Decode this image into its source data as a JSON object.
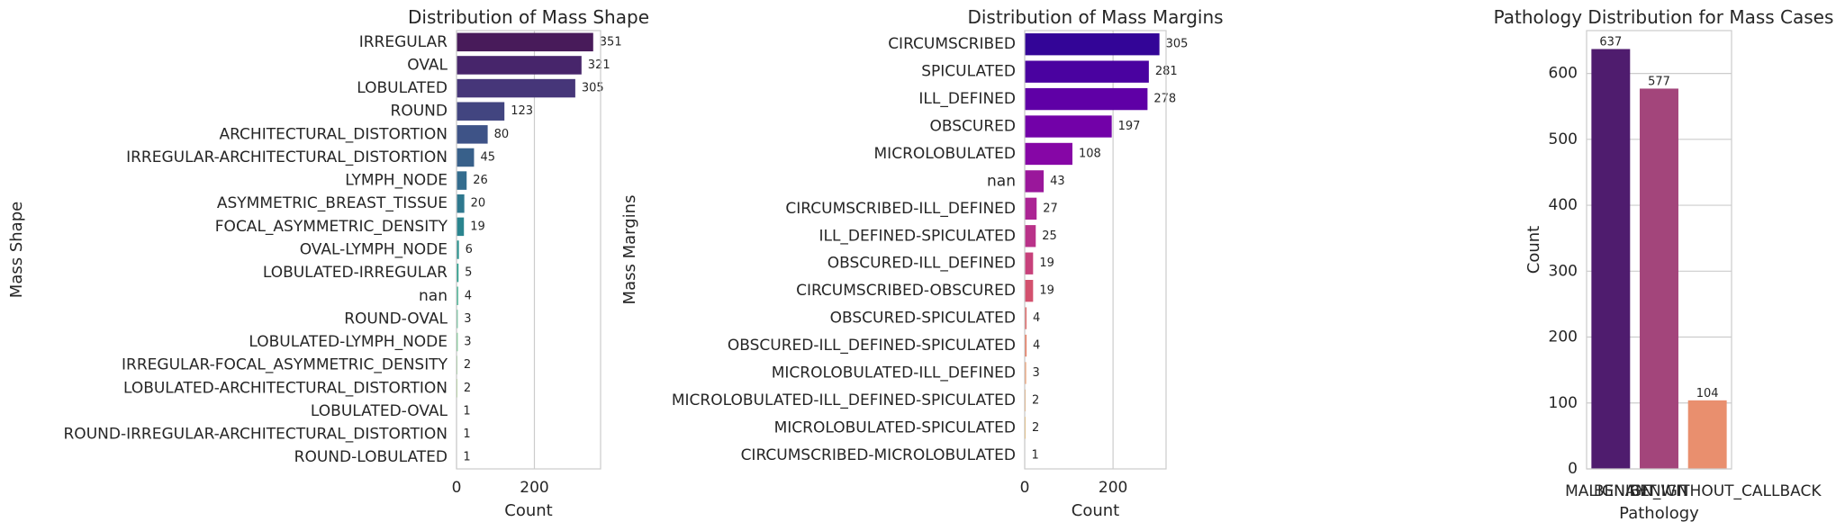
{
  "chart_data": [
    {
      "type": "bar",
      "orientation": "horizontal",
      "title": "Distribution of Mass Shape",
      "xlabel": "Count",
      "ylabel": "Mass Shape",
      "xlim": [
        0,
        370
      ],
      "xticks": [
        0,
        200
      ],
      "grid": true,
      "palette": "viridis",
      "categories": [
        "IRREGULAR",
        "OVAL",
        "LOBULATED",
        "ROUND",
        "ARCHITECTURAL_DISTORTION",
        "IRREGULAR-ARCHITECTURAL_DISTORTION",
        "LYMPH_NODE",
        "ASYMMETRIC_BREAST_TISSUE",
        "FOCAL_ASYMMETRIC_DENSITY",
        "OVAL-LYMPH_NODE",
        "LOBULATED-IRREGULAR",
        "nan",
        "ROUND-OVAL",
        "LOBULATED-LYMPH_NODE",
        "IRREGULAR-FOCAL_ASYMMETRIC_DENSITY",
        "LOBULATED-ARCHITECTURAL_DISTORTION",
        "LOBULATED-OVAL",
        "ROUND-IRREGULAR-ARCHITECTURAL_DISTORTION",
        "ROUND-LOBULATED"
      ],
      "values": [
        351,
        321,
        305,
        123,
        80,
        45,
        26,
        20,
        19,
        6,
        5,
        4,
        3,
        3,
        2,
        2,
        1,
        1,
        1
      ],
      "colors": [
        "#481b5a",
        "#47256b",
        "#463679",
        "#424580",
        "#3e5387",
        "#38608a",
        "#336c8e",
        "#2e788e",
        "#2a848e",
        "#25908c",
        "#209c88",
        "#25a883",
        "#35b47a",
        "#4abf6f",
        "#66c861",
        "#87d04f",
        "#a9d93c",
        "#cddd2e",
        "#ecd62a"
      ]
    },
    {
      "type": "bar",
      "orientation": "horizontal",
      "title": "Distribution of Mass Margins",
      "xlabel": "Count",
      "ylabel": "Mass Margins",
      "xlim": [
        0,
        320
      ],
      "xticks": [
        0,
        200
      ],
      "grid": true,
      "palette": "plasma",
      "categories": [
        "CIRCUMSCRIBED",
        "SPICULATED",
        "ILL_DEFINED",
        "OBSCURED",
        "MICROLOBULATED",
        "nan",
        "CIRCUMSCRIBED-ILL_DEFINED",
        "ILL_DEFINED-SPICULATED",
        "OBSCURED-ILL_DEFINED",
        "CIRCUMSCRIBED-OBSCURED",
        "OBSCURED-SPICULATED",
        "OBSCURED-ILL_DEFINED-SPICULATED",
        "MICROLOBULATED-ILL_DEFINED",
        "MICROLOBULATED-ILL_DEFINED-SPICULATED",
        "MICROLOBULATED-SPICULATED",
        "CIRCUMSCRIBED-MICROLOBULATED"
      ],
      "values": [
        305,
        281,
        278,
        197,
        108,
        43,
        27,
        25,
        19,
        19,
        4,
        4,
        3,
        2,
        2,
        1
      ],
      "colors": [
        "#330597",
        "#4a02a0",
        "#5f00a6",
        "#7201a8",
        "#8606a6",
        "#9a179b",
        "#ab2494",
        "#b93289",
        "#c7417b",
        "#d3516e",
        "#de6262",
        "#e87457",
        "#f0864a",
        "#f6993e",
        "#fbad30",
        "#fdc328"
      ]
    },
    {
      "type": "bar",
      "orientation": "vertical",
      "title": "Pathology Distribution for Mass Cases",
      "xlabel": "Pathology",
      "ylabel": "Count",
      "ylim": [
        0,
        665
      ],
      "yticks": [
        0,
        100,
        200,
        300,
        400,
        500,
        600
      ],
      "grid": true,
      "palette": "magma",
      "categories": [
        "MALIGNANT",
        "BENIGN",
        "BENIGN_WITHOUT_CALLBACK"
      ],
      "values": [
        637,
        577,
        104
      ],
      "colors": [
        "#4f1c6e",
        "#a3457b",
        "#e98f6e"
      ]
    }
  ]
}
